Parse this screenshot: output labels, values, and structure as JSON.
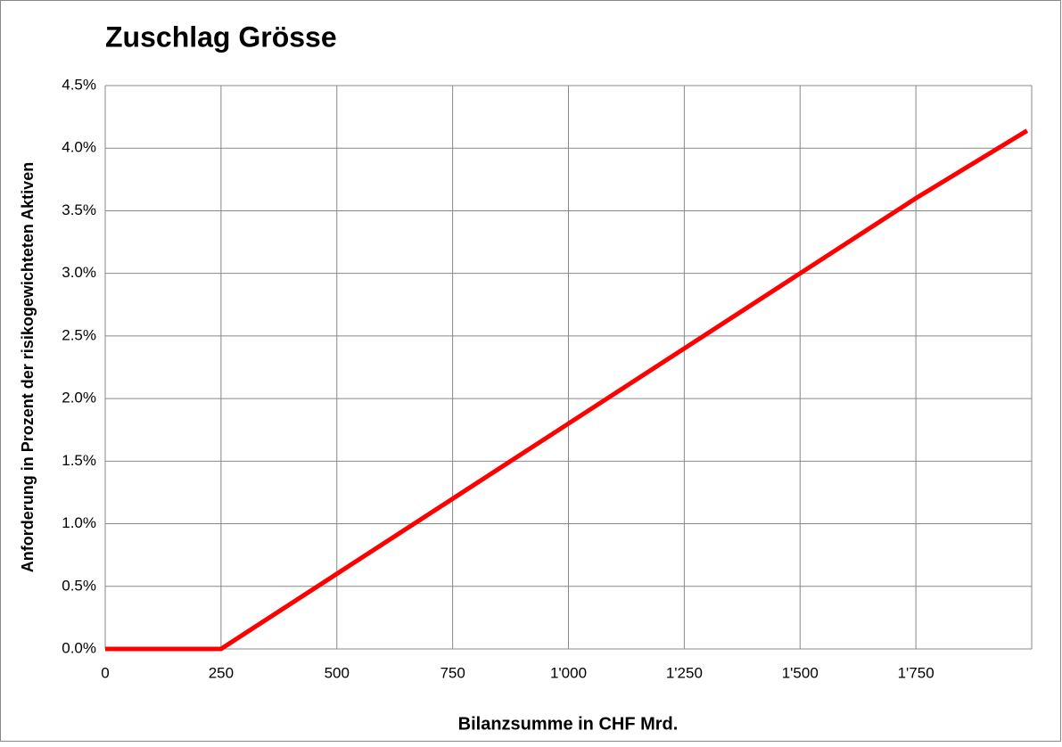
{
  "chart_data": {
    "type": "line",
    "title": "Zuschlag Grösse",
    "x_label": "Bilanzsumme in CHF Mrd.",
    "y_label": "Anforderung in Prozent der risikogewichteten Aktiven",
    "x": [
      0,
      250,
      500,
      750,
      1000,
      1250,
      1500,
      1750,
      1990
    ],
    "series": [
      {
        "name": "Zuschlag Grösse",
        "color": "#ff0000",
        "values": [
          0,
          0,
          0.6,
          1.2,
          1.8,
          2.4,
          3.0,
          3.6,
          4.14
        ]
      }
    ],
    "xlim": [
      0,
      2000
    ],
    "xticks": [
      0,
      250,
      500,
      750,
      {
        "value": 1000,
        "label": "1'000"
      },
      {
        "value": 1250,
        "label": "1'250"
      },
      {
        "value": 1500,
        "label": "1'500"
      },
      {
        "value": 1750,
        "label": "1'750"
      }
    ],
    "ylim": [
      0,
      4.5
    ],
    "yticks": [
      {
        "value": 0,
        "label": "0.0%"
      },
      {
        "value": 0.5,
        "label": "0.5%"
      },
      {
        "value": 1,
        "label": "1.0%"
      },
      {
        "value": 1.5,
        "label": "1.5%"
      },
      {
        "value": 2,
        "label": "2.0%"
      },
      {
        "value": 2.5,
        "label": "2.5%"
      },
      {
        "value": 3,
        "label": "3.0%"
      },
      {
        "value": 3.5,
        "label": "3.5%"
      },
      {
        "value": 4,
        "label": "4.0%"
      },
      {
        "value": 4.5,
        "label": "4.5%"
      }
    ],
    "grid": true
  }
}
